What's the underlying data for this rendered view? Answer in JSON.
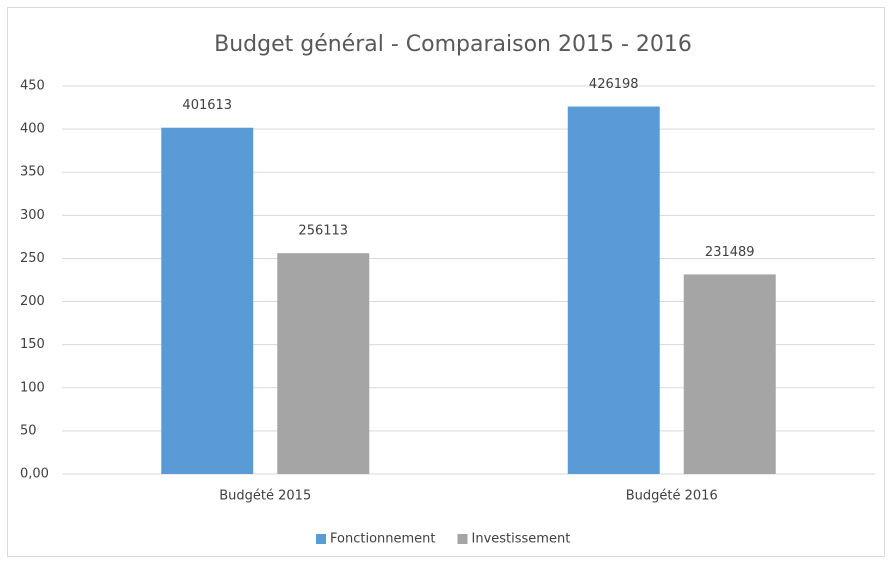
{
  "chart_data": {
    "type": "bar",
    "title": "Budget général - Comparaison 2015 - 2016",
    "categories": [
      "Budgété 2015",
      "Budgété 2016"
    ],
    "series": [
      {
        "name": "Fonctionnement",
        "color": "#5b9bd5",
        "values": [
          401.613,
          426.198
        ],
        "value_labels": [
          "401613",
          "426198"
        ]
      },
      {
        "name": "Investissement",
        "color": "#a5a5a5",
        "values": [
          256.113,
          231.489
        ],
        "value_labels": [
          "256113",
          "231489"
        ]
      }
    ],
    "ylim": [
      0,
      450
    ],
    "yticks": [
      {
        "value": 0,
        "label": "0,00"
      },
      50,
      100,
      150,
      200,
      250,
      300,
      350,
      400,
      450
    ],
    "grid": true,
    "legend": "bottom"
  }
}
